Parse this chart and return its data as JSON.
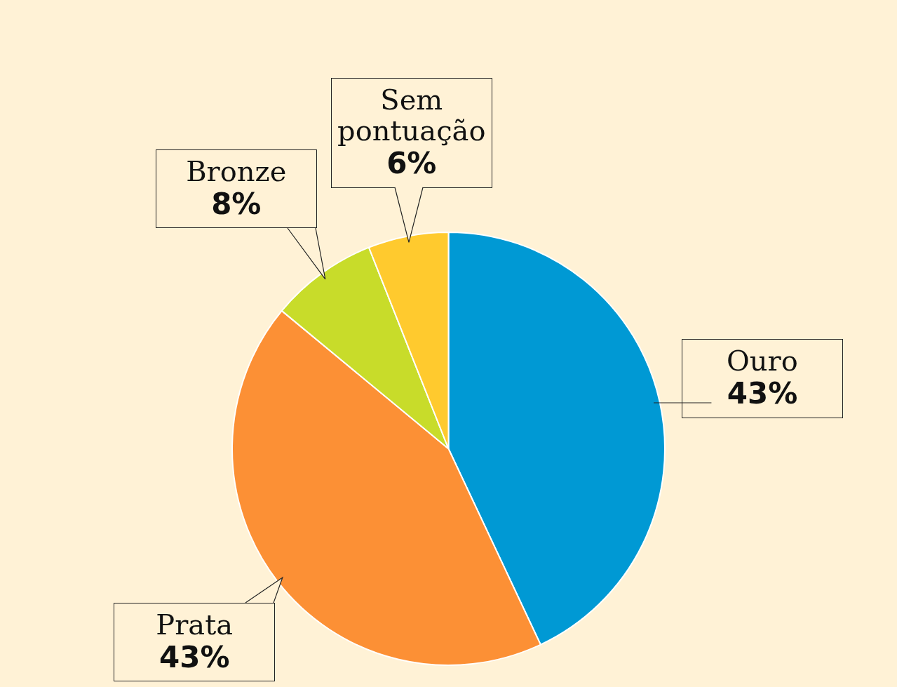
{
  "chart_data": {
    "type": "pie",
    "categories": [
      "Ouro",
      "Prata",
      "Bronze",
      "Sem pontuação"
    ],
    "values": [
      43,
      43,
      8,
      6
    ],
    "colors": [
      "#0099d4",
      "#fc9035",
      "#c8dc2a",
      "#ffca2e"
    ],
    "value_labels": [
      "43%",
      "43%",
      "8%",
      "6%"
    ],
    "legend": false
  }
}
